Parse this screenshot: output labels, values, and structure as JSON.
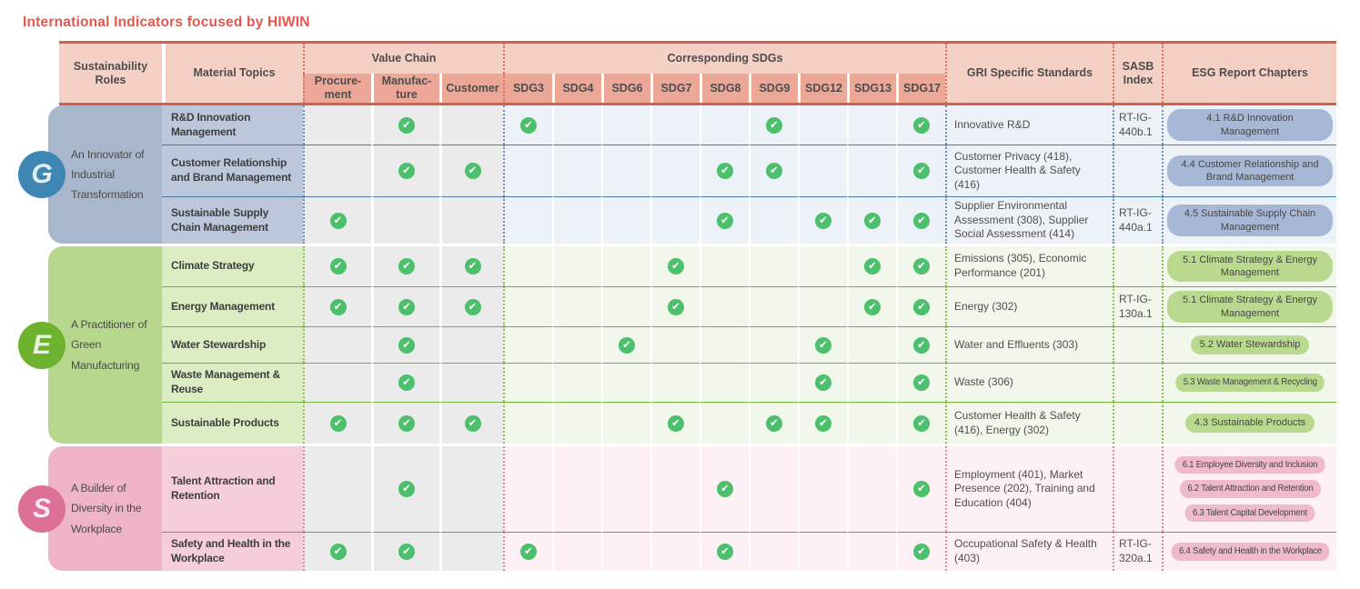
{
  "title": "International Indicators focused by HIWIN",
  "palette": {
    "title": "#e2574e",
    "header_bg": "#f5d1c5",
    "header_sub_bg": "#eda796",
    "header_line": "#d2604e",
    "header_dot": "#e0715f",
    "header_text": "#4d4d4d",
    "vc_cell_bg": "#ebebeb",
    "check_green": "#4cc06d",
    "body_text": "#4f4f4f"
  },
  "header": {
    "sustainability_roles": "Sustainability Roles",
    "material_topics": "Material Topics",
    "value_chain": "Value Chain",
    "value_chain_cols": [
      "Procure-\nment",
      "Manufac-\nture",
      "Customer"
    ],
    "corresponding_sdgs": "Corresponding SDGs",
    "sdg_cols": [
      "SDG3",
      "SDG4",
      "SDG6",
      "SDG7",
      "SDG8",
      "SDG9",
      "SDG12",
      "SDG13",
      "SDG17"
    ],
    "gri": "GRI Specific Standards",
    "sasb": "SASB Index",
    "esg": "ESG Report Chapters"
  },
  "groups": [
    {
      "id": "G",
      "badge": "G",
      "role": "An Innovator of Industrial Transformation",
      "colors": {
        "badge": "#3e86b4",
        "panel": "#a9b7cd",
        "topic": "#bdc7db",
        "tint": "#edf1f8",
        "line": "#4a7aa6",
        "dot": "#6f8fb5",
        "pill": "#a7b8d6"
      },
      "rows": [
        {
          "topic": "R&D Innovation Management",
          "value_chain": [
            false,
            true,
            false
          ],
          "sdgs": [
            true,
            false,
            false,
            false,
            false,
            true,
            false,
            false,
            true
          ],
          "gri": "Innovative R&D",
          "sasb": "RT-IG-440b.1",
          "chapters": [
            {
              "label": "4.1 R&D Innovation Management",
              "compact": false
            }
          ]
        },
        {
          "topic": "Customer Relationship and Brand Management",
          "value_chain": [
            false,
            true,
            true
          ],
          "sdgs": [
            false,
            false,
            false,
            false,
            true,
            true,
            false,
            false,
            true
          ],
          "gri": "Customer Privacy (418), Customer Health & Safety (416)",
          "sasb": "",
          "chapters": [
            {
              "label": "4.4 Customer Relationship and Brand Management",
              "compact": false
            }
          ]
        },
        {
          "topic": "Sustainable Supply Chain Management",
          "value_chain": [
            true,
            false,
            false
          ],
          "sdgs": [
            false,
            false,
            false,
            false,
            true,
            false,
            true,
            true,
            true
          ],
          "gri": "Supplier Environmental Assessment (308), Supplier Social Assessment (414)",
          "sasb": "RT-IG-440a.1",
          "chapters": [
            {
              "label": "4.5 Sustainable Supply Chain Management",
              "compact": false
            }
          ]
        }
      ]
    },
    {
      "id": "E",
      "badge": "E",
      "role": "A Practitioner of Green Manufacturing",
      "colors": {
        "badge": "#6db32f",
        "panel": "#b7d88c",
        "topic": "#dcecc3",
        "tint": "#f1f7ea",
        "line": "#76b13a",
        "dot": "#8fbf55",
        "pill": "#b9da8e"
      },
      "rows": [
        {
          "topic": "Climate Strategy",
          "value_chain": [
            true,
            true,
            true
          ],
          "sdgs": [
            false,
            false,
            false,
            true,
            false,
            false,
            false,
            true,
            true
          ],
          "gri": "Emissions (305), Economic Performance (201)",
          "sasb": "",
          "chapters": [
            {
              "label": "5.1 Climate Strategy & Energy Management",
              "compact": false
            }
          ]
        },
        {
          "topic": "Energy Management",
          "value_chain": [
            true,
            true,
            true
          ],
          "sdgs": [
            false,
            false,
            false,
            true,
            false,
            false,
            false,
            true,
            true
          ],
          "gri": "Energy (302)",
          "sasb": "RT-IG-130a.1",
          "chapters": [
            {
              "label": "5.1 Climate Strategy & Energy Management",
              "compact": false
            }
          ]
        },
        {
          "topic": "Water Stewardship",
          "value_chain": [
            false,
            true,
            false
          ],
          "sdgs": [
            false,
            false,
            true,
            false,
            false,
            false,
            true,
            false,
            true
          ],
          "gri": "Water and Effluents (303)",
          "sasb": "",
          "chapters": [
            {
              "label": "5.2 Water Stewardship",
              "compact": false
            }
          ]
        },
        {
          "topic": "Waste Management & Reuse",
          "value_chain": [
            false,
            true,
            false
          ],
          "sdgs": [
            false,
            false,
            false,
            false,
            false,
            false,
            true,
            false,
            true
          ],
          "gri": "Waste (306)",
          "sasb": "",
          "chapters": [
            {
              "label": "5.3 Waste Management & Recycling",
              "compact": true
            }
          ]
        },
        {
          "topic": "Sustainable Products",
          "value_chain": [
            true,
            true,
            true
          ],
          "sdgs": [
            false,
            false,
            false,
            true,
            false,
            true,
            true,
            false,
            true
          ],
          "gri": "Customer Health & Safety (416), Energy (302)",
          "sasb": "",
          "chapters": [
            {
              "label": "4.3 Sustainable Products",
              "compact": false
            }
          ]
        }
      ]
    },
    {
      "id": "S",
      "badge": "S",
      "role": "A Builder of Diversity in the Workplace",
      "colors": {
        "badge": "#dd7096",
        "panel": "#efb4c8",
        "topic": "#f5ced9",
        "tint": "#fdf1f5",
        "line": "#d45f85",
        "dot": "#df8aa5",
        "pill": "#efbac9"
      },
      "rows": [
        {
          "topic": "Talent Attraction and Retention",
          "value_chain": [
            false,
            true,
            false
          ],
          "sdgs": [
            false,
            false,
            false,
            false,
            true,
            false,
            false,
            false,
            true
          ],
          "gri": "Employment (401), Market Presence (202), Training and Education (404)",
          "sasb": "",
          "chapters": [
            {
              "label": "6.1 Employee Diversity and Inclusion",
              "compact": true
            },
            {
              "label": "6.2 Talent Attraction and Retention",
              "compact": true
            },
            {
              "label": "6.3 Talent Capital Development",
              "compact": true
            }
          ]
        },
        {
          "topic": "Safety and Health in the Workplace",
          "value_chain": [
            true,
            true,
            false
          ],
          "sdgs": [
            true,
            false,
            false,
            false,
            true,
            false,
            false,
            false,
            true
          ],
          "gri": "Occupational Safety & Health (403)",
          "sasb": "RT-IG-320a.1",
          "chapters": [
            {
              "label": "6.4 Safety and Health in the Workplace",
              "compact": true
            }
          ]
        }
      ]
    }
  ]
}
